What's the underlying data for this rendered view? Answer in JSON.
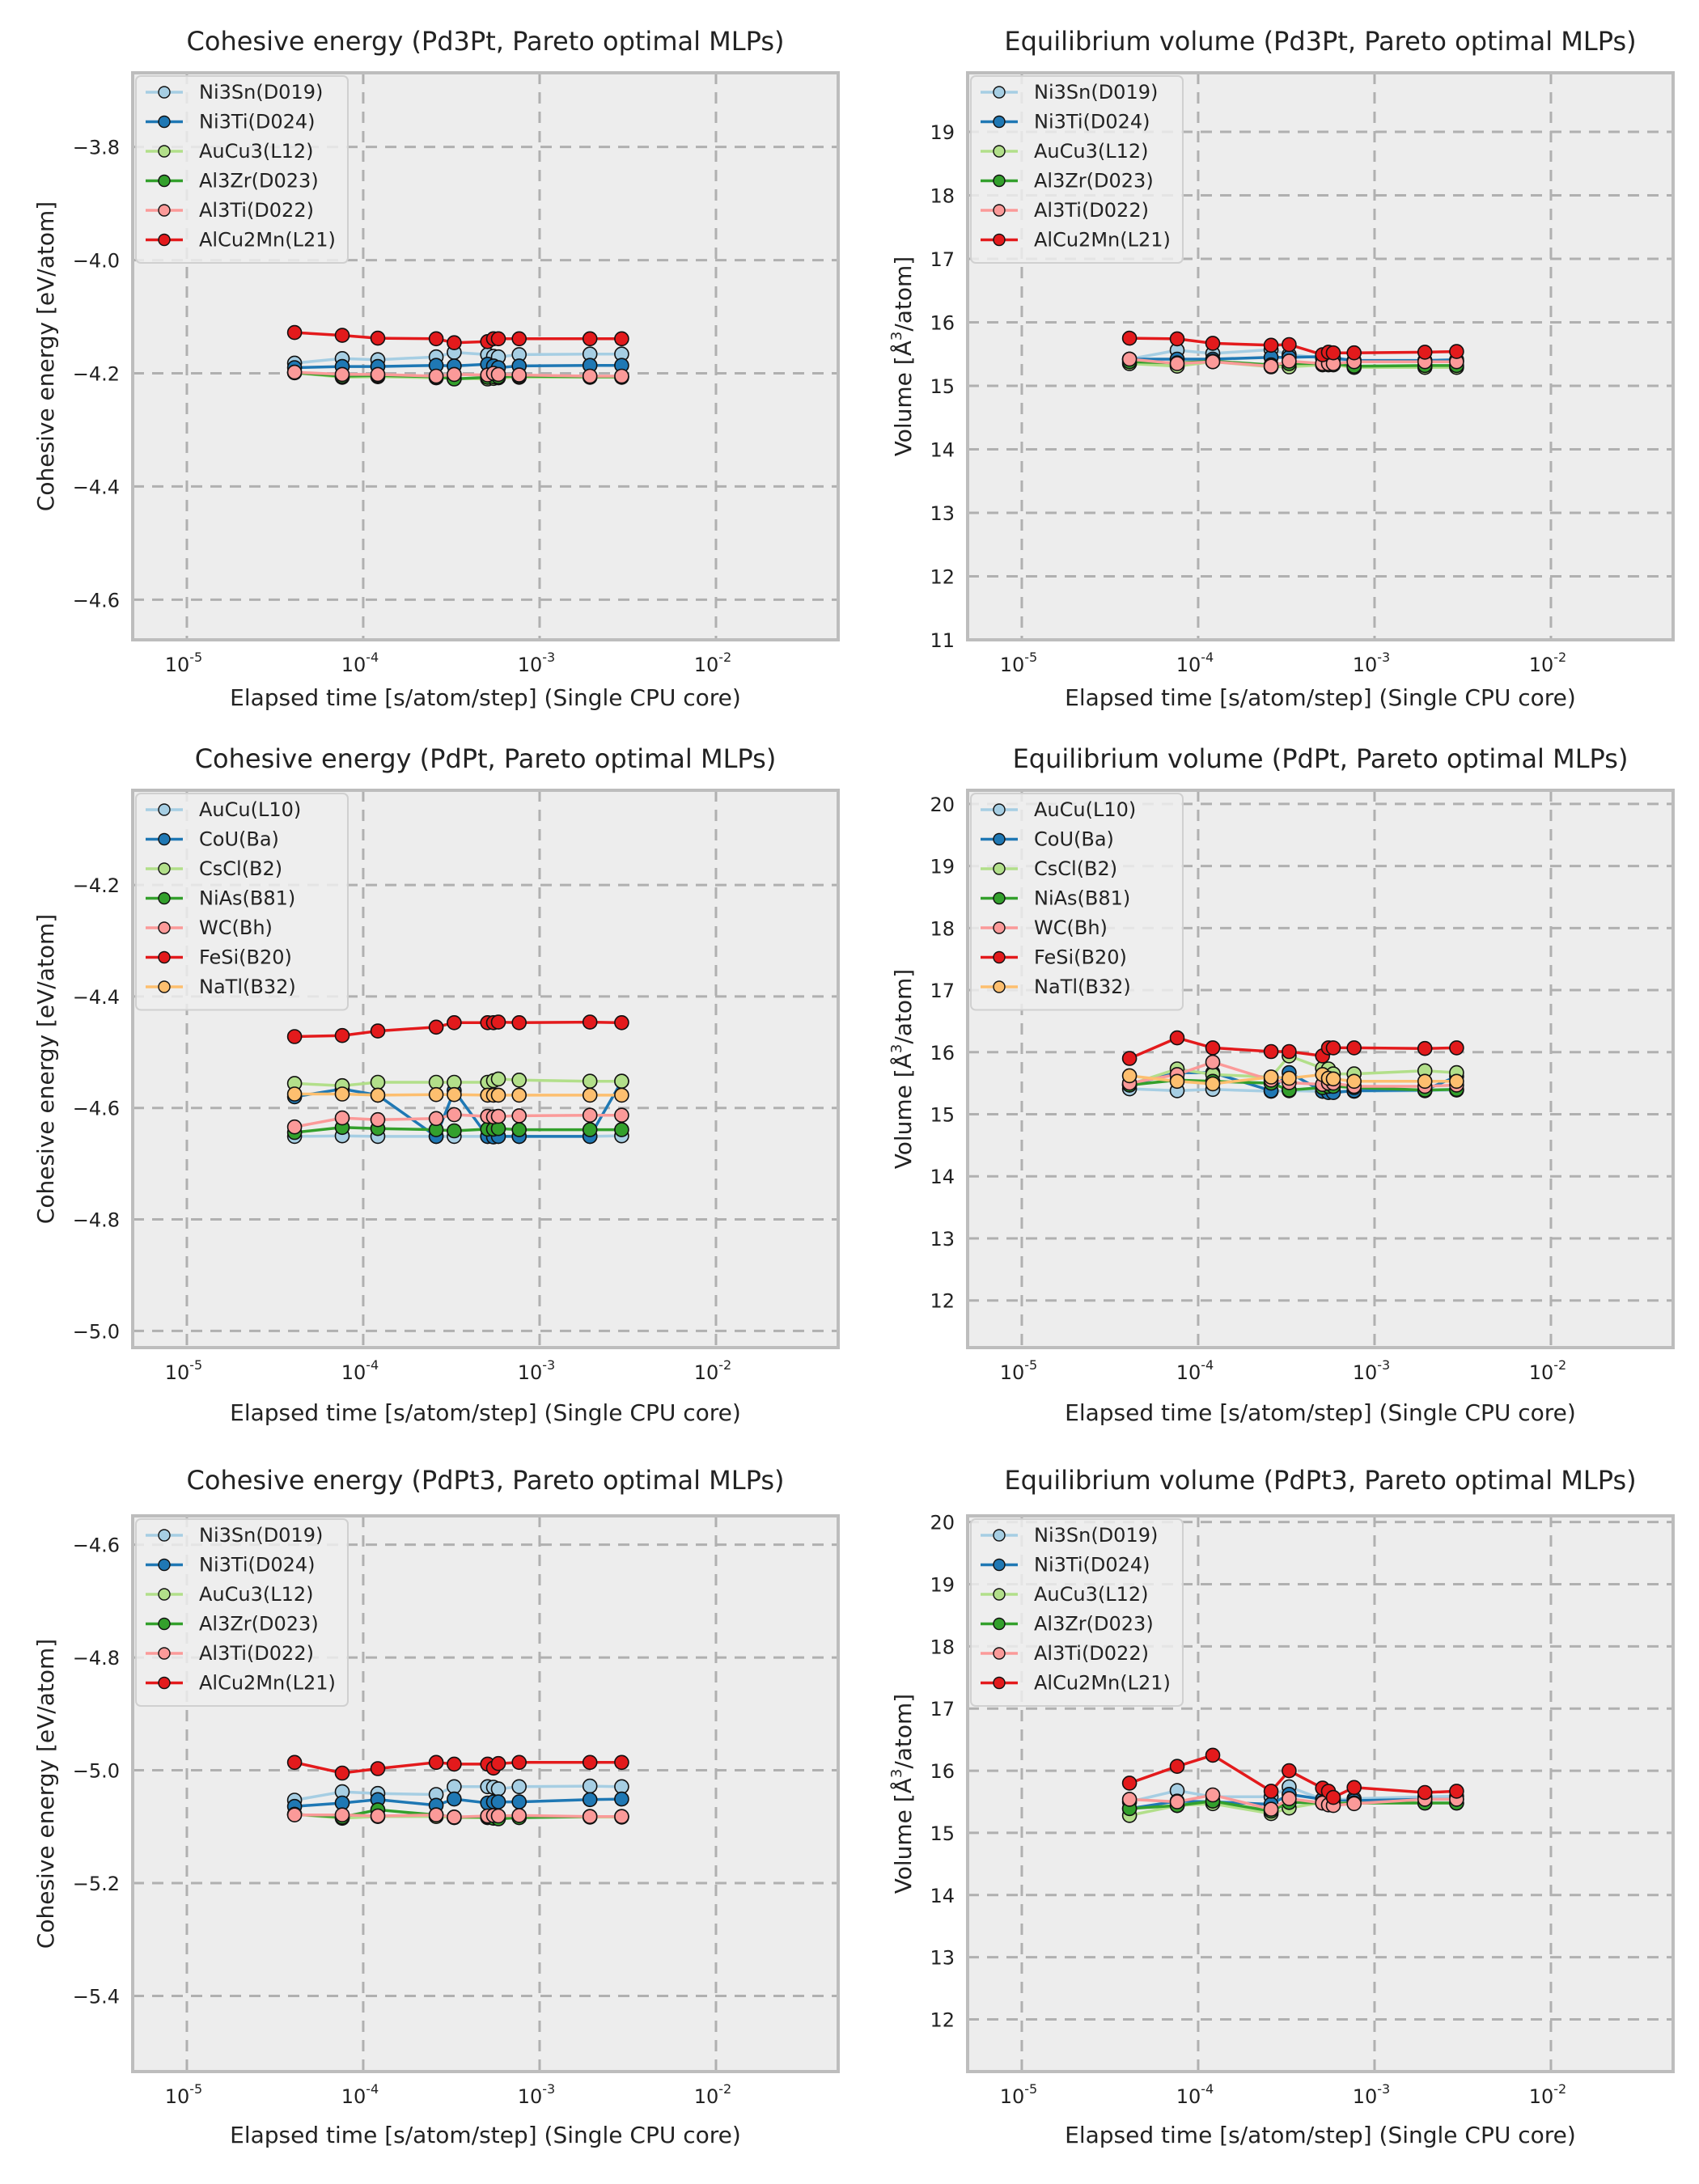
{
  "figure": {
    "x_ticks": [
      {
        "base": "10",
        "exp": "-5",
        "value": 1e-05
      },
      {
        "base": "10",
        "exp": "-4",
        "value": 0.0001
      },
      {
        "base": "10",
        "exp": "-3",
        "value": 0.001
      },
      {
        "base": "10",
        "exp": "-2",
        "value": 0.01
      }
    ],
    "colors": {
      "background": "#ffffff",
      "axes_face": "#ededed",
      "axes_edge": "#bdbdbd",
      "grid": "#b0b0b0"
    }
  },
  "chart_data": [
    {
      "id": "ce_pd3pt",
      "type": "line",
      "title": "Cohesive energy (Pd3Pt, Pareto optimal MLPs)",
      "xlabel": "Elapsed time [s/atom/step] (Single CPU core)",
      "ylabel": "Cohesive energy [eV/atom]",
      "xscale": "log",
      "xlim": [
        4.93e-06,
        0.0493
      ],
      "ylim": [
        -4.671,
        -3.669
      ],
      "yticks": [
        -3.8,
        -4.0,
        -4.2,
        -4.4,
        -4.6
      ],
      "ytick_labels": [
        "−3.8",
        "−4.0",
        "−4.2",
        "−4.4",
        "−4.6"
      ],
      "grid": true,
      "legend": "top-left",
      "x": [
        4.08e-05,
        7.6e-05,
        0.000121,
        0.000259,
        0.000328,
        0.000507,
        0.000548,
        0.000584,
        0.000766,
        0.00193,
        0.00292
      ],
      "series": [
        {
          "name": "Ni3Sn(D019)",
          "color": "#a6cee3",
          "values": [
            -4.182,
            -4.174,
            -4.176,
            -4.171,
            -4.163,
            -4.167,
            -4.17,
            -4.171,
            -4.167,
            -4.166,
            -4.166
          ]
        },
        {
          "name": "Ni3Ti(D024)",
          "color": "#1f78b4",
          "values": [
            -4.19,
            -4.188,
            -4.188,
            -4.186,
            -4.187,
            -4.184,
            -4.187,
            -4.19,
            -4.187,
            -4.186,
            -4.186
          ]
        },
        {
          "name": "AuCu3(L12)",
          "color": "#b2df8a",
          "values": [
            -4.199,
            -4.207,
            -4.206,
            -4.208,
            -4.209,
            -4.21,
            -4.209,
            -4.208,
            -4.207,
            -4.207,
            -4.207
          ]
        },
        {
          "name": "Al3Zr(D023)",
          "color": "#33a02c",
          "values": [
            -4.199,
            -4.205,
            -4.204,
            -4.206,
            -4.21,
            -4.207,
            -4.206,
            -4.206,
            -4.205,
            -4.206,
            -4.206
          ]
        },
        {
          "name": "Al3Ti(D022)",
          "color": "#fb9a99",
          "values": [
            -4.198,
            -4.202,
            -4.202,
            -4.205,
            -4.202,
            -4.203,
            -4.2,
            -4.202,
            -4.203,
            -4.205,
            -4.205
          ]
        },
        {
          "name": "AlCu2Mn(L21)",
          "color": "#e31a1c",
          "values": [
            -4.128,
            -4.133,
            -4.138,
            -4.139,
            -4.146,
            -4.144,
            -4.139,
            -4.139,
            -4.139,
            -4.139,
            -4.139
          ]
        }
      ]
    },
    {
      "id": "vol_pd3pt",
      "type": "line",
      "title": "Equilibrium volume (Pd3Pt, Pareto optimal MLPs)",
      "xlabel": "Elapsed time [s/atom/step] (Single CPU core)",
      "ylabel_pre": "Volume [",
      "ylabel_unit": "Å",
      "ylabel_sup": "3",
      "ylabel_post": "/atom]",
      "xscale": "log",
      "xlim": [
        4.93e-06,
        0.0493
      ],
      "ylim": [
        11.0,
        19.93
      ],
      "yticks": [
        11,
        12,
        13,
        14,
        15,
        16,
        17,
        18,
        19
      ],
      "ytick_labels": [
        "11",
        "12",
        "13",
        "14",
        "15",
        "16",
        "17",
        "18",
        "19"
      ],
      "grid": true,
      "legend": "top-left",
      "x": [
        4.08e-05,
        7.6e-05,
        0.000121,
        0.000259,
        0.000328,
        0.000507,
        0.000548,
        0.000584,
        0.000766,
        0.00193,
        0.00292
      ],
      "series": [
        {
          "name": "Ni3Sn(D019)",
          "color": "#a6cee3",
          "values": [
            15.42,
            15.56,
            15.51,
            15.57,
            15.49,
            15.44,
            15.43,
            15.42,
            15.38,
            15.39,
            15.39
          ]
        },
        {
          "name": "Ni3Ti(D024)",
          "color": "#1f78b4",
          "values": [
            15.42,
            15.42,
            15.42,
            15.45,
            15.45,
            15.46,
            15.44,
            15.44,
            15.4,
            15.4,
            15.41
          ]
        },
        {
          "name": "AuCu3(L12)",
          "color": "#b2df8a",
          "values": [
            15.35,
            15.31,
            15.38,
            15.3,
            15.3,
            15.33,
            15.33,
            15.33,
            15.29,
            15.29,
            15.29
          ]
        },
        {
          "name": "Al3Zr(D023)",
          "color": "#33a02c",
          "values": [
            15.38,
            15.36,
            15.39,
            15.33,
            15.35,
            15.35,
            15.35,
            15.35,
            15.31,
            15.32,
            15.32
          ]
        },
        {
          "name": "Al3Ti(D022)",
          "color": "#fb9a99",
          "values": [
            15.42,
            15.35,
            15.38,
            15.31,
            15.39,
            15.35,
            15.35,
            15.35,
            15.38,
            15.38,
            15.38
          ]
        },
        {
          "name": "AlCu2Mn(L21)",
          "color": "#e31a1c",
          "values": [
            15.75,
            15.74,
            15.67,
            15.64,
            15.65,
            15.49,
            15.53,
            15.52,
            15.52,
            15.53,
            15.54
          ]
        }
      ]
    },
    {
      "id": "ce_pdpt",
      "type": "line",
      "title": "Cohesive energy (PdPt, Pareto optimal MLPs)",
      "xlabel": "Elapsed time [s/atom/step] (Single CPU core)",
      "ylabel": "Cohesive energy [eV/atom]",
      "xscale": "log",
      "xlim": [
        4.93e-06,
        0.0493
      ],
      "ylim": [
        -5.03,
        -4.03
      ],
      "yticks": [
        -4.2,
        -4.4,
        -4.6,
        -4.8,
        -5.0
      ],
      "ytick_labels": [
        "−4.2",
        "−4.4",
        "−4.6",
        "−4.8",
        "−5.0"
      ],
      "grid": true,
      "legend": "top-left",
      "x": [
        4.08e-05,
        7.6e-05,
        0.000121,
        0.000259,
        0.000328,
        0.000507,
        0.000548,
        0.000584,
        0.000766,
        0.00193,
        0.00292
      ],
      "series": [
        {
          "name": "AuCu(L10)",
          "color": "#a6cee3",
          "values": [
            -4.651,
            -4.65,
            -4.651,
            -4.651,
            -4.651,
            -4.651,
            -4.651,
            -4.651,
            -4.651,
            -4.651,
            -4.65
          ]
        },
        {
          "name": "CoU(Ba)",
          "color": "#1f78b4",
          "values": [
            -4.58,
            -4.566,
            -4.577,
            -4.651,
            -4.569,
            -4.651,
            -4.652,
            -4.651,
            -4.651,
            -4.651,
            -4.552
          ]
        },
        {
          "name": "CsCl(B2)",
          "color": "#b2df8a",
          "values": [
            -4.556,
            -4.56,
            -4.554,
            -4.554,
            -4.554,
            -4.554,
            -4.551,
            -4.548,
            -4.55,
            -4.552,
            -4.552
          ]
        },
        {
          "name": "NiAs(B81)",
          "color": "#33a02c",
          "values": [
            -4.644,
            -4.635,
            -4.637,
            -4.639,
            -4.641,
            -4.638,
            -4.638,
            -4.637,
            -4.639,
            -4.639,
            -4.639
          ]
        },
        {
          "name": "WC(Bh)",
          "color": "#fb9a99",
          "values": [
            -4.634,
            -4.618,
            -4.621,
            -4.619,
            -4.612,
            -4.615,
            -4.616,
            -4.615,
            -4.614,
            -4.613,
            -4.613
          ]
        },
        {
          "name": "FeSi(B20)",
          "color": "#e31a1c",
          "values": [
            -4.472,
            -4.47,
            -4.462,
            -4.455,
            -4.447,
            -4.447,
            -4.447,
            -4.446,
            -4.447,
            -4.446,
            -4.447
          ]
        },
        {
          "name": "NaTl(B32)",
          "color": "#fdbf6f",
          "values": [
            -4.575,
            -4.575,
            -4.577,
            -4.576,
            -4.576,
            -4.577,
            -4.577,
            -4.577,
            -4.577,
            -4.577,
            -4.577
          ]
        }
      ]
    },
    {
      "id": "vol_pdpt",
      "type": "line",
      "title": "Equilibrium volume (PdPt, Pareto optimal MLPs)",
      "xlabel": "Elapsed time [s/atom/step] (Single CPU core)",
      "ylabel_pre": "Volume [",
      "ylabel_unit": "Å",
      "ylabel_sup": "3",
      "ylabel_post": "/atom]",
      "xscale": "log",
      "xlim": [
        4.93e-06,
        0.0493
      ],
      "ylim": [
        11.24,
        20.22
      ],
      "yticks": [
        12,
        13,
        14,
        15,
        16,
        17,
        18,
        19,
        20
      ],
      "ytick_labels": [
        "12",
        "13",
        "14",
        "15",
        "16",
        "17",
        "18",
        "19",
        "20"
      ],
      "grid": true,
      "legend": "top-left",
      "x": [
        4.08e-05,
        7.6e-05,
        0.000121,
        0.000259,
        0.000328,
        0.000507,
        0.000548,
        0.000584,
        0.000766,
        0.00193,
        0.00292
      ],
      "series": [
        {
          "name": "AuCu(L10)",
          "color": "#a6cee3",
          "values": [
            15.41,
            15.38,
            15.4,
            15.37,
            15.38,
            15.37,
            15.37,
            15.37,
            15.37,
            15.38,
            15.39
          ]
        },
        {
          "name": "CoU(Ba)",
          "color": "#1f78b4",
          "values": [
            15.47,
            15.67,
            15.67,
            15.38,
            15.67,
            15.37,
            15.35,
            15.35,
            15.38,
            15.39,
            15.61
          ]
        },
        {
          "name": "CsCl(B2)",
          "color": "#b2df8a",
          "values": [
            15.48,
            15.73,
            15.64,
            15.6,
            15.94,
            15.74,
            15.73,
            15.65,
            15.65,
            15.7,
            15.67
          ]
        },
        {
          "name": "NiAs(B81)",
          "color": "#33a02c",
          "values": [
            15.47,
            15.55,
            15.53,
            15.5,
            15.39,
            15.43,
            15.45,
            15.45,
            15.43,
            15.39,
            15.4
          ]
        },
        {
          "name": "WC(Bh)",
          "color": "#fb9a99",
          "values": [
            15.5,
            15.64,
            15.84,
            15.55,
            15.51,
            15.48,
            15.5,
            15.5,
            15.45,
            15.45,
            15.47
          ]
        },
        {
          "name": "FeSi(B20)",
          "color": "#e31a1c",
          "values": [
            15.9,
            16.23,
            16.07,
            16.01,
            16.01,
            15.94,
            16.07,
            16.07,
            16.07,
            16.06,
            16.07
          ]
        },
        {
          "name": "NaTl(B32)",
          "color": "#fdbf6f",
          "values": [
            15.62,
            15.53,
            15.49,
            15.6,
            15.58,
            15.64,
            15.58,
            15.57,
            15.53,
            15.53,
            15.53
          ]
        }
      ]
    },
    {
      "id": "ce_pdpt3",
      "type": "line",
      "title": "Cohesive energy (PdPt3, Pareto optimal MLPs)",
      "xlabel": "Elapsed time [s/atom/step] (Single CPU core)",
      "ylabel": "Cohesive energy [eV/atom]",
      "xscale": "log",
      "xlim": [
        4.93e-06,
        0.0493
      ],
      "ylim": [
        -5.534,
        -4.549
      ],
      "yticks": [
        -4.6,
        -4.8,
        -5.0,
        -5.2,
        -5.4
      ],
      "ytick_labels": [
        "−4.6",
        "−4.8",
        "−5.0",
        "−5.2",
        "−5.4"
      ],
      "grid": true,
      "legend": "top-left",
      "x": [
        4.08e-05,
        7.6e-05,
        0.000121,
        0.000259,
        0.000328,
        0.000507,
        0.000548,
        0.000584,
        0.000766,
        0.00193,
        0.00292
      ],
      "series": [
        {
          "name": "Ni3Sn(D019)",
          "color": "#a6cee3",
          "values": [
            -5.053,
            -5.038,
            -5.041,
            -5.043,
            -5.029,
            -5.029,
            -5.03,
            -5.033,
            -5.029,
            -5.028,
            -5.029
          ]
        },
        {
          "name": "Ni3Ti(D024)",
          "color": "#1f78b4",
          "values": [
            -5.064,
            -5.058,
            -5.052,
            -5.062,
            -5.051,
            -5.058,
            -5.056,
            -5.056,
            -5.056,
            -5.052,
            -5.051
          ]
        },
        {
          "name": "AuCu3(L12)",
          "color": "#b2df8a",
          "values": [
            -5.078,
            -5.085,
            -5.082,
            -5.082,
            -5.084,
            -5.084,
            -5.084,
            -5.084,
            -5.083,
            -5.083,
            -5.083
          ]
        },
        {
          "name": "Al3Zr(D023)",
          "color": "#33a02c",
          "values": [
            -5.078,
            -5.083,
            -5.07,
            -5.079,
            -5.083,
            -5.083,
            -5.085,
            -5.086,
            -5.084,
            -5.082,
            -5.082
          ]
        },
        {
          "name": "Al3Ti(D022)",
          "color": "#fb9a99",
          "values": [
            -5.079,
            -5.079,
            -5.081,
            -5.079,
            -5.083,
            -5.081,
            -5.08,
            -5.081,
            -5.08,
            -5.082,
            -5.082
          ]
        },
        {
          "name": "AlCu2Mn(L21)",
          "color": "#e31a1c",
          "values": [
            -4.986,
            -5.005,
            -4.997,
            -4.986,
            -4.989,
            -4.989,
            -4.996,
            -4.988,
            -4.986,
            -4.986,
            -4.986
          ]
        }
      ]
    },
    {
      "id": "vol_pdpt3",
      "type": "line",
      "title": "Equilibrium volume (PdPt3, Pareto optimal MLPs)",
      "xlabel": "Elapsed time [s/atom/step] (Single CPU core)",
      "ylabel_pre": "Volume [",
      "ylabel_unit": "Å",
      "ylabel_sup": "3",
      "ylabel_post": "/atom]",
      "xscale": "log",
      "xlim": [
        4.93e-06,
        0.0493
      ],
      "ylim": [
        11.16,
        20.1
      ],
      "yticks": [
        12,
        13,
        14,
        15,
        16,
        17,
        18,
        19,
        20
      ],
      "ytick_labels": [
        "12",
        "13",
        "14",
        "15",
        "16",
        "17",
        "18",
        "19",
        "20"
      ],
      "grid": true,
      "legend": "top-left",
      "x": [
        4.08e-05,
        7.6e-05,
        0.000121,
        0.000259,
        0.000328,
        0.000507,
        0.000548,
        0.000584,
        0.000766,
        0.00193,
        0.00292
      ],
      "series": [
        {
          "name": "Ni3Sn(D019)",
          "color": "#a6cee3",
          "values": [
            15.5,
            15.68,
            15.58,
            15.58,
            15.74,
            15.54,
            15.54,
            15.53,
            15.55,
            15.58,
            15.59
          ]
        },
        {
          "name": "Ni3Ti(D024)",
          "color": "#1f78b4",
          "values": [
            15.39,
            15.51,
            15.5,
            15.46,
            15.62,
            15.54,
            15.52,
            15.51,
            15.52,
            15.54,
            15.54
          ]
        },
        {
          "name": "AuCu3(L12)",
          "color": "#b2df8a",
          "values": [
            15.28,
            15.44,
            15.47,
            15.31,
            15.4,
            15.49,
            15.48,
            15.48,
            15.48,
            15.48,
            15.48
          ]
        },
        {
          "name": "Al3Zr(D023)",
          "color": "#33a02c",
          "values": [
            15.39,
            15.44,
            15.51,
            15.35,
            15.49,
            15.48,
            15.48,
            15.47,
            15.48,
            15.48,
            15.48
          ]
        },
        {
          "name": "Al3Ti(D022)",
          "color": "#fb9a99",
          "values": [
            15.54,
            15.5,
            15.61,
            15.38,
            15.55,
            15.48,
            15.45,
            15.44,
            15.47,
            15.54,
            15.54
          ]
        },
        {
          "name": "AlCu2Mn(L21)",
          "color": "#e31a1c",
          "values": [
            15.8,
            16.07,
            16.25,
            15.67,
            16.0,
            15.72,
            15.67,
            15.57,
            15.73,
            15.65,
            15.67
          ]
        }
      ]
    }
  ]
}
